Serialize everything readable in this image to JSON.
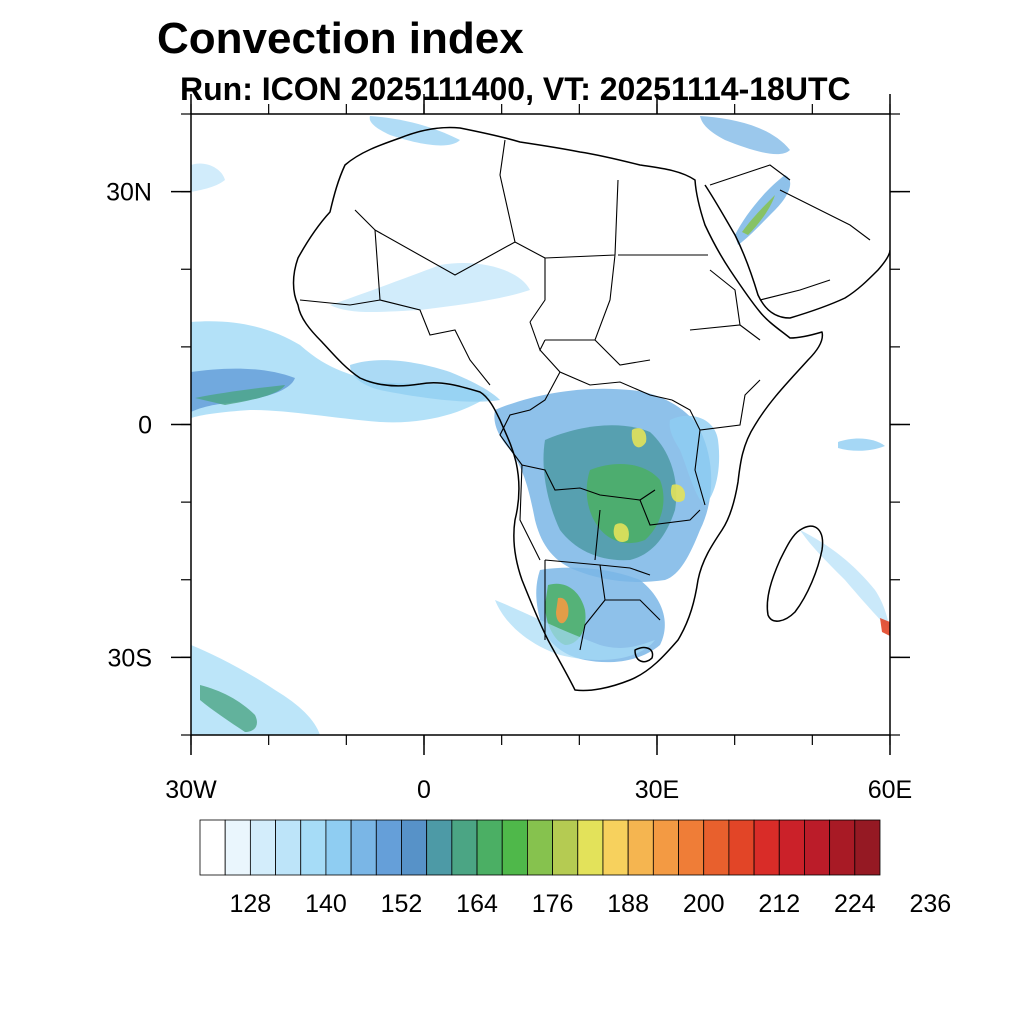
{
  "title": "Convection index",
  "subtitle": "Run: ICON 2025111400,  VT: 20251114-18UTC",
  "map": {
    "projection": "cylindrical equidistant",
    "lon_range": [
      -30,
      60
    ],
    "lat_range": [
      -40,
      40
    ],
    "lon_ticks": [
      {
        "value": -30,
        "label": "30W"
      },
      {
        "value": 0,
        "label": "0"
      },
      {
        "value": 30,
        "label": "30E"
      },
      {
        "value": 60,
        "label": "60E"
      }
    ],
    "lat_ticks": [
      {
        "value": 30,
        "label": "30N"
      },
      {
        "value": 0,
        "label": "0"
      },
      {
        "value": -30,
        "label": "30S"
      }
    ]
  },
  "colorbar": {
    "colors": [
      "#ffffff",
      "#eaf6fd",
      "#d3edfb",
      "#bde4f9",
      "#a6dcf7",
      "#8fcdf2",
      "#7ab6e6",
      "#659fd9",
      "#5792c8",
      "#4d9aa6",
      "#4ba584",
      "#4baf64",
      "#4fb84a",
      "#86c24e",
      "#b5cb52",
      "#e3e25a",
      "#f7d15d",
      "#f5b550",
      "#f39a43",
      "#ef7d37",
      "#e8602d",
      "#e24527",
      "#d92c28",
      "#cb2129",
      "#bb1c29",
      "#a81a25",
      "#951923"
    ],
    "labels": [
      "128",
      "140",
      "152",
      "164",
      "176",
      "188",
      "200",
      "212",
      "224",
      "236"
    ]
  }
}
